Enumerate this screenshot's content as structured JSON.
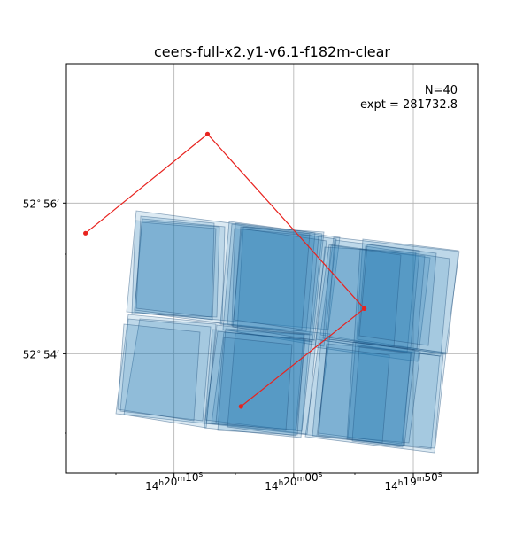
{
  "chart_data": {
    "type": "scatter",
    "title": "ceers-full-x2.y1-v6.1-f182m-clear",
    "annotation": {
      "n_line": "N=40",
      "expt_line": "expt = 281732.8",
      "placement": "top-right"
    },
    "xlabel": "",
    "ylabel": "",
    "x_unit": "RA (h m s)",
    "y_unit": "Dec (deg arcmin)",
    "xlim": [
      "14h20m19.0s",
      "14h19m44.6s"
    ],
    "ylim": [
      "52°52'25\"",
      "52°57'51\""
    ],
    "x_inverted": true,
    "grid": true,
    "x_ticks": [
      {
        "value": "14h20m10s",
        "label_h": "14",
        "label_m": "20",
        "label_s": "10"
      },
      {
        "value": "14h20m00s",
        "label_h": "14",
        "label_m": "20",
        "label_s": "00"
      },
      {
        "value": "14h19m50s",
        "label_h": "14",
        "label_m": "19",
        "label_s": "50"
      }
    ],
    "y_ticks": [
      {
        "value": "52°56'",
        "label_deg": "52",
        "label_min": "56"
      },
      {
        "value": "52°54'",
        "label_deg": "52",
        "label_min": "54"
      }
    ],
    "exposure_footprint": {
      "count": 40,
      "fill_color": "#1f77b4",
      "edge_color": "#1f4e79",
      "stacked_alpha": 0.35
    },
    "trajectory": {
      "color": "#e8231f",
      "points": [
        {
          "ra": "14h20m17.4s",
          "dec": "52°55'36\""
        },
        {
          "ra": "14h20m07.2s",
          "dec": "52°56'55\""
        },
        {
          "ra": "14h19m54.1s",
          "dec": "52°54'36\""
        },
        {
          "ra": "14h20m04.4s",
          "dec": "52°53'18\""
        }
      ]
    }
  }
}
